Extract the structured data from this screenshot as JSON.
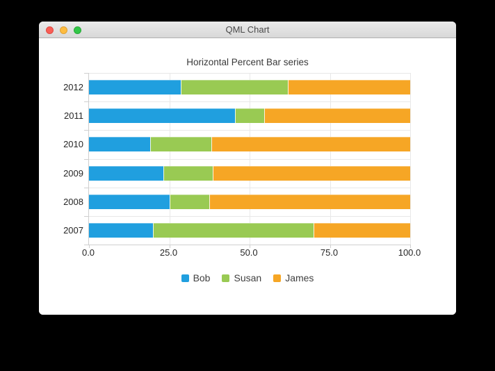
{
  "window": {
    "title": "QML Chart",
    "traffic_lights": [
      {
        "name": "close",
        "color": "#f95e56",
        "border": "#df4a42"
      },
      {
        "name": "minimize",
        "color": "#fdbc40",
        "border": "#dfa133"
      },
      {
        "name": "zoom",
        "color": "#33c748",
        "border": "#27a838"
      }
    ]
  },
  "chart_data": {
    "type": "bar",
    "orientation": "horizontal",
    "stacking": "percent",
    "title": "Horizontal Percent Bar series",
    "categories": [
      "2007",
      "2008",
      "2009",
      "2010",
      "2011",
      "2012"
    ],
    "series": [
      {
        "name": "Bob",
        "color": "#209fdf",
        "percent_values": [
          20.0,
          25.0,
          23.1,
          19.0,
          45.5,
          28.6
        ]
      },
      {
        "name": "Susan",
        "color": "#99ca53",
        "percent_values": [
          50.0,
          12.5,
          15.4,
          19.0,
          9.1,
          33.3
        ]
      },
      {
        "name": "James",
        "color": "#f6a625",
        "percent_values": [
          30.0,
          62.5,
          61.5,
          61.9,
          45.5,
          38.1
        ]
      }
    ],
    "x_axis": {
      "tick_labels": [
        "0.0",
        "25.0",
        "50.0",
        "75.0",
        "100.0"
      ],
      "range": [
        0,
        100
      ]
    },
    "y_axis": {
      "labels_top_to_bottom": [
        "2012",
        "2011",
        "2010",
        "2009",
        "2008",
        "2007"
      ]
    },
    "legend": {
      "position": "bottom",
      "entries": [
        "Bob",
        "Susan",
        "James"
      ]
    },
    "grid": true
  }
}
